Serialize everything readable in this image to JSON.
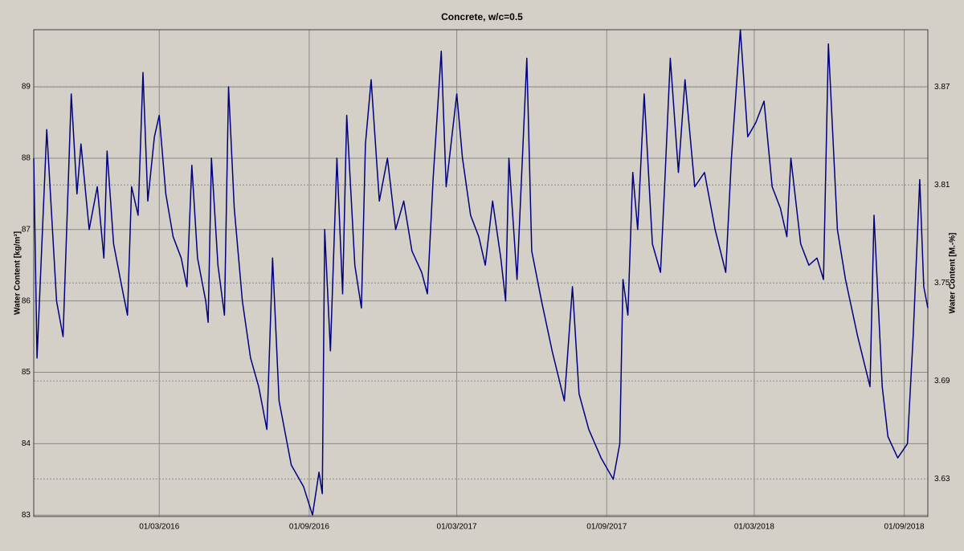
{
  "chart_data": {
    "type": "line",
    "title": "Concrete, w/c=0.5",
    "y_label": "Water Content [kg/m³]",
    "y2_label": "Water Content [M.-%]",
    "color": "#000080",
    "x": [
      "2015-09-29",
      "2015-10-03",
      "2015-10-15",
      "2015-10-27",
      "2015-11-04",
      "2015-11-14",
      "2015-11-21",
      "2015-11-26",
      "2015-12-06",
      "2015-12-16",
      "2015-12-24",
      "2015-12-28",
      "2016-01-05",
      "2016-01-15",
      "2016-01-22",
      "2016-01-27",
      "2016-02-04",
      "2016-02-10",
      "2016-02-16",
      "2016-02-24",
      "2016-03-01",
      "2016-03-09",
      "2016-03-18",
      "2016-03-28",
      "2016-04-04",
      "2016-04-10",
      "2016-04-17",
      "2016-04-27",
      "2016-04-30",
      "2016-05-04",
      "2016-05-12",
      "2016-05-20",
      "2016-05-25",
      "2016-06-01",
      "2016-06-11",
      "2016-06-21",
      "2016-07-01",
      "2016-07-11",
      "2016-07-18",
      "2016-07-26",
      "2016-08-10",
      "2016-08-25",
      "2016-09-05",
      "2016-09-13",
      "2016-09-17",
      "2016-09-20",
      "2016-09-27",
      "2016-10-05",
      "2016-10-12",
      "2016-10-17",
      "2016-10-27",
      "2016-11-04",
      "2016-11-09",
      "2016-11-16",
      "2016-11-26",
      "2016-12-06",
      "2016-12-16",
      "2016-12-26",
      "2017-01-05",
      "2017-01-17",
      "2017-01-24",
      "2017-01-31",
      "2017-02-10",
      "2017-02-16",
      "2017-02-24",
      "2017-03-01",
      "2017-03-08",
      "2017-03-18",
      "2017-03-28",
      "2017-04-05",
      "2017-04-14",
      "2017-04-24",
      "2017-04-30",
      "2017-05-04",
      "2017-05-14",
      "2017-05-26",
      "2017-06-01",
      "2017-06-13",
      "2017-06-26",
      "2017-07-11",
      "2017-07-21",
      "2017-07-29",
      "2017-08-10",
      "2017-08-25",
      "2017-09-09",
      "2017-09-17",
      "2017-09-21",
      "2017-09-27",
      "2017-10-03",
      "2017-10-09",
      "2017-10-17",
      "2017-10-27",
      "2017-11-06",
      "2017-11-11",
      "2017-11-18",
      "2017-11-28",
      "2017-12-06",
      "2017-12-18",
      "2017-12-30",
      "2018-01-12",
      "2018-01-25",
      "2018-02-01",
      "2018-02-12",
      "2018-02-21",
      "2018-03-03",
      "2018-03-13",
      "2018-03-23",
      "2018-04-02",
      "2018-04-10",
      "2018-04-15",
      "2018-04-27",
      "2018-05-07",
      "2018-05-17",
      "2018-05-25",
      "2018-05-31",
      "2018-06-11",
      "2018-06-21",
      "2018-07-06",
      "2018-07-21",
      "2018-07-26",
      "2018-08-05",
      "2018-08-12",
      "2018-08-24",
      "2018-09-05",
      "2018-09-12",
      "2018-09-20",
      "2018-09-25",
      "2018-09-30"
    ],
    "values": [
      88.0,
      85.2,
      88.4,
      86.0,
      85.5,
      88.9,
      87.5,
      88.2,
      87.0,
      87.6,
      86.6,
      88.1,
      86.8,
      86.2,
      85.8,
      87.6,
      87.2,
      89.2,
      87.4,
      88.3,
      88.6,
      87.5,
      86.9,
      86.6,
      86.2,
      87.9,
      86.6,
      86.0,
      85.7,
      88.0,
      86.5,
      85.8,
      89.0,
      87.3,
      86.0,
      85.2,
      84.8,
      84.2,
      86.6,
      84.6,
      83.7,
      83.4,
      83.0,
      83.6,
      83.3,
      87.0,
      85.3,
      88.0,
      86.1,
      88.6,
      86.5,
      85.9,
      88.2,
      89.1,
      87.4,
      88.0,
      87.0,
      87.4,
      86.7,
      86.4,
      86.1,
      87.7,
      89.5,
      87.6,
      88.4,
      88.9,
      88.0,
      87.2,
      86.9,
      86.5,
      87.4,
      86.6,
      86.0,
      88.0,
      86.3,
      89.4,
      86.7,
      86.0,
      85.3,
      84.6,
      86.2,
      84.7,
      84.2,
      83.8,
      83.5,
      84.0,
      86.3,
      85.8,
      87.8,
      87.0,
      88.9,
      86.8,
      86.4,
      87.6,
      89.4,
      87.8,
      89.1,
      87.6,
      87.8,
      87.0,
      86.4,
      88.0,
      89.8,
      88.3,
      88.5,
      88.8,
      87.6,
      87.3,
      86.9,
      88.0,
      86.8,
      86.5,
      86.6,
      86.3,
      89.6,
      87.0,
      86.3,
      85.5,
      84.8,
      87.2,
      84.8,
      84.1,
      83.8,
      84.0,
      85.5,
      87.7,
      86.2,
      85.9
    ],
    "xlim": [
      "2015-09-29",
      "2018-09-30"
    ],
    "xticks": [
      {
        "value": "2016-03-01",
        "label": "01/03/2016"
      },
      {
        "value": "2016-09-01",
        "label": "01/09/2016"
      },
      {
        "value": "2017-03-01",
        "label": "01/03/2017"
      },
      {
        "value": "2017-09-01",
        "label": "01/09/2017"
      },
      {
        "value": "2018-03-01",
        "label": "01/03/2018"
      },
      {
        "value": "2018-09-01",
        "label": "01/09/2018"
      }
    ],
    "ylim": [
      82.98,
      89.8
    ],
    "yticks": [
      83,
      84,
      85,
      86,
      87,
      88,
      89
    ],
    "y2lim": [
      3.607,
      3.905
    ],
    "y2ticks": [
      3.63,
      3.69,
      3.75,
      3.81,
      3.87
    ],
    "grid": true
  }
}
